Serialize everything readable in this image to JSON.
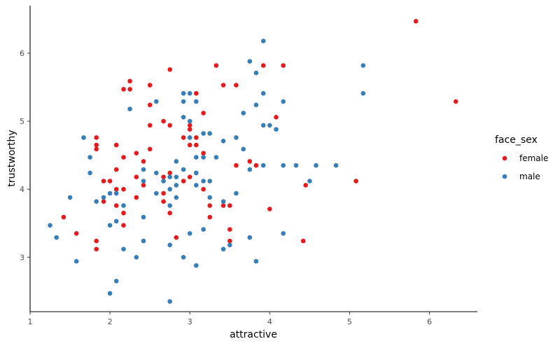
{
  "chart_data": {
    "type": "scatter",
    "xlabel": "attractive",
    "ylabel": "trustworthy",
    "xlim": [
      1,
      6.6
    ],
    "ylim": [
      2.2,
      6.7
    ],
    "xticks": [
      "1",
      "2",
      "3",
      "4",
      "5",
      "6"
    ],
    "yticks": [
      "3",
      "4",
      "5",
      "6"
    ],
    "grid": false,
    "legend": {
      "title": "face_sex",
      "position": "right"
    },
    "series": [
      {
        "name": "female",
        "color": "#e41a1c",
        "points": [
          [
            1.42,
            3.59
          ],
          [
            1.58,
            3.35
          ],
          [
            1.83,
            4.76
          ],
          [
            1.83,
            4.65
          ],
          [
            1.83,
            4.59
          ],
          [
            1.83,
            3.24
          ],
          [
            1.83,
            3.12
          ],
          [
            1.92,
            4.12
          ],
          [
            1.92,
            3.82
          ],
          [
            2.0,
            4.12
          ],
          [
            2.08,
            4.65
          ],
          [
            2.08,
            4.29
          ],
          [
            2.08,
            4.0
          ],
          [
            2.08,
            3.76
          ],
          [
            2.17,
            5.47
          ],
          [
            2.17,
            4.47
          ],
          [
            2.17,
            4.0
          ],
          [
            2.17,
            3.65
          ],
          [
            2.17,
            3.47
          ],
          [
            2.25,
            5.59
          ],
          [
            2.25,
            5.47
          ],
          [
            2.33,
            4.53
          ],
          [
            2.33,
            4.18
          ],
          [
            2.33,
            3.88
          ],
          [
            2.42,
            4.41
          ],
          [
            2.42,
            4.06
          ],
          [
            2.5,
            5.53
          ],
          [
            2.5,
            5.24
          ],
          [
            2.5,
            4.94
          ],
          [
            2.5,
            4.59
          ],
          [
            2.67,
            5.0
          ],
          [
            2.67,
            4.18
          ],
          [
            2.67,
            3.94
          ],
          [
            2.67,
            3.82
          ],
          [
            2.75,
            5.76
          ],
          [
            2.75,
            4.94
          ],
          [
            2.75,
            4.24
          ],
          [
            2.75,
            3.65
          ],
          [
            2.83,
            3.29
          ],
          [
            2.92,
            4.76
          ],
          [
            2.92,
            4.12
          ],
          [
            3.0,
            4.94
          ],
          [
            3.0,
            4.88
          ],
          [
            3.0,
            4.65
          ],
          [
            3.0,
            4.18
          ],
          [
            3.08,
            5.41
          ],
          [
            3.08,
            4.76
          ],
          [
            3.08,
            4.65
          ],
          [
            3.08,
            4.24
          ],
          [
            3.17,
            5.12
          ],
          [
            3.17,
            4.53
          ],
          [
            3.17,
            4.0
          ],
          [
            3.25,
            3.76
          ],
          [
            3.25,
            3.59
          ],
          [
            3.33,
            5.82
          ],
          [
            3.42,
            5.53
          ],
          [
            3.42,
            3.76
          ],
          [
            3.5,
            3.76
          ],
          [
            3.5,
            3.41
          ],
          [
            3.5,
            3.24
          ],
          [
            3.58,
            5.53
          ],
          [
            3.58,
            4.35
          ],
          [
            3.75,
            4.41
          ],
          [
            3.83,
            4.35
          ],
          [
            3.92,
            5.82
          ],
          [
            4.0,
            3.71
          ],
          [
            4.08,
            5.06
          ],
          [
            4.17,
            5.82
          ],
          [
            4.42,
            3.24
          ],
          [
            4.45,
            4.06
          ],
          [
            5.08,
            4.12
          ],
          [
            5.83,
            6.47
          ],
          [
            6.33,
            5.29
          ]
        ]
      },
      {
        "name": "male",
        "color": "#377eb8",
        "points": [
          [
            1.25,
            3.47
          ],
          [
            1.33,
            3.29
          ],
          [
            1.5,
            3.88
          ],
          [
            1.58,
            2.94
          ],
          [
            1.67,
            4.76
          ],
          [
            1.75,
            4.47
          ],
          [
            1.75,
            4.24
          ],
          [
            1.83,
            3.82
          ],
          [
            1.92,
            3.88
          ],
          [
            2.0,
            3.94
          ],
          [
            2.0,
            3.47
          ],
          [
            2.0,
            2.47
          ],
          [
            2.08,
            3.94
          ],
          [
            2.08,
            3.53
          ],
          [
            2.08,
            2.65
          ],
          [
            2.17,
            3.76
          ],
          [
            2.17,
            3.12
          ],
          [
            2.25,
            5.18
          ],
          [
            2.33,
            3.0
          ],
          [
            2.42,
            4.29
          ],
          [
            2.42,
            4.12
          ],
          [
            2.42,
            3.59
          ],
          [
            2.42,
            3.24
          ],
          [
            2.58,
            5.29
          ],
          [
            2.58,
            4.24
          ],
          [
            2.58,
            3.94
          ],
          [
            2.67,
            4.12
          ],
          [
            2.75,
            4.18
          ],
          [
            2.75,
            4.0
          ],
          [
            2.75,
            3.76
          ],
          [
            2.75,
            3.18
          ],
          [
            2.75,
            2.35
          ],
          [
            2.83,
            4.41
          ],
          [
            2.83,
            4.18
          ],
          [
            2.83,
            4.06
          ],
          [
            2.83,
            3.88
          ],
          [
            2.92,
            5.41
          ],
          [
            2.92,
            5.29
          ],
          [
            2.92,
            5.06
          ],
          [
            2.92,
            4.29
          ],
          [
            2.92,
            3.0
          ],
          [
            3.0,
            5.41
          ],
          [
            3.0,
            5.0
          ],
          [
            3.0,
            4.76
          ],
          [
            3.0,
            3.35
          ],
          [
            3.08,
            5.29
          ],
          [
            3.08,
            4.47
          ],
          [
            3.08,
            4.24
          ],
          [
            3.08,
            4.06
          ],
          [
            3.08,
            2.88
          ],
          [
            3.17,
            4.82
          ],
          [
            3.17,
            4.47
          ],
          [
            3.17,
            4.12
          ],
          [
            3.17,
            3.41
          ],
          [
            3.25,
            4.82
          ],
          [
            3.25,
            4.12
          ],
          [
            3.25,
            3.88
          ],
          [
            3.33,
            4.47
          ],
          [
            3.42,
            4.71
          ],
          [
            3.42,
            3.82
          ],
          [
            3.42,
            3.12
          ],
          [
            3.5,
            3.18
          ],
          [
            3.58,
            4.76
          ],
          [
            3.58,
            3.94
          ],
          [
            3.67,
            5.12
          ],
          [
            3.67,
            4.59
          ],
          [
            3.75,
            5.88
          ],
          [
            3.75,
            4.29
          ],
          [
            3.75,
            3.29
          ],
          [
            3.83,
            5.71
          ],
          [
            3.83,
            5.24
          ],
          [
            3.83,
            2.94
          ],
          [
            3.92,
            6.18
          ],
          [
            3.92,
            5.41
          ],
          [
            3.92,
            4.94
          ],
          [
            3.92,
            4.35
          ],
          [
            4.0,
            4.94
          ],
          [
            4.08,
            4.88
          ],
          [
            4.17,
            5.29
          ],
          [
            4.17,
            4.35
          ],
          [
            4.17,
            3.35
          ],
          [
            4.33,
            4.35
          ],
          [
            4.5,
            4.12
          ],
          [
            4.58,
            4.35
          ],
          [
            4.83,
            4.35
          ],
          [
            5.17,
            5.82
          ],
          [
            5.17,
            5.41
          ]
        ]
      }
    ]
  }
}
